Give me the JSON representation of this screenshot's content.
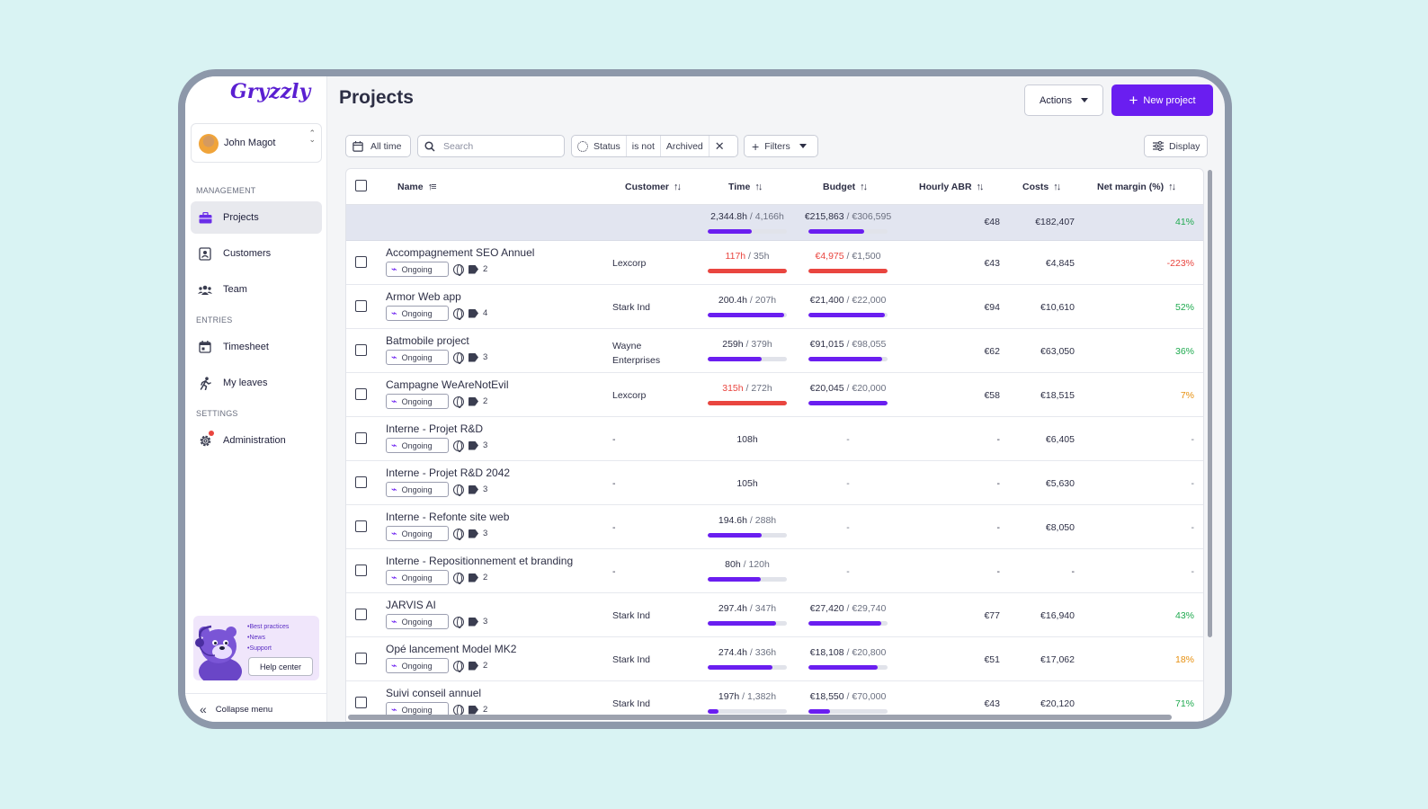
{
  "app": {
    "logo": "Gryzzly",
    "page_title": "Projects"
  },
  "user": {
    "name": "John Magot"
  },
  "sidebar": {
    "sections": {
      "management": "MANAGEMENT",
      "entries": "ENTRIES",
      "settings": "SETTINGS"
    },
    "items": [
      {
        "label": "Projects",
        "icon": "briefcase-icon",
        "active": true
      },
      {
        "label": "Customers",
        "icon": "contact-card-icon"
      },
      {
        "label": "Team",
        "icon": "team-icon"
      },
      {
        "label": "Timesheet",
        "icon": "calendar-icon"
      },
      {
        "label": "My leaves",
        "icon": "runner-icon"
      },
      {
        "label": "Administration",
        "icon": "gear-icon",
        "notification": true
      }
    ],
    "help": {
      "links": [
        "•Best practices",
        "•News",
        "•Support"
      ],
      "button": "Help center"
    },
    "collapse": "Collapse menu"
  },
  "header": {
    "actions": "Actions",
    "new_project": "New project"
  },
  "filters": {
    "time": "All time",
    "search_placeholder": "Search",
    "status": {
      "field": "Status",
      "op": "is not",
      "value": "Archived"
    },
    "filters": "Filters",
    "display": "Display"
  },
  "columns": [
    "Name",
    "Customer",
    "Time",
    "Budget",
    "Hourly ABR",
    "Costs",
    "Net margin (%)"
  ],
  "summary": {
    "time_used": "2,344.8h",
    "time_total": "4,166h",
    "time_pct": 0.56,
    "budget_used": "€215,863",
    "budget_total": "€306,595",
    "budget_pct": 0.7,
    "abr": "€48",
    "costs": "€182,407",
    "margin": "41%",
    "margin_color": "green"
  },
  "colors": {
    "accent": "#6a1ef0",
    "danger": "#e9453f",
    "success": "#1faa4f",
    "warning": "#e7900f"
  },
  "projects": [
    {
      "name": "Accompagnement SEO Annuel",
      "status": "Ongoing",
      "tag_count": "2",
      "customer": "Lexcorp",
      "time_used": "117h",
      "time_total": "35h",
      "time_pct": 1,
      "time_over": true,
      "budget_used": "€4,975",
      "budget_total": "€1,500",
      "budget_pct": 1,
      "budget_over": true,
      "abr": "€43",
      "costs": "€4,845",
      "margin": "-223%",
      "margin_color": "red"
    },
    {
      "name": "Armor Web app",
      "status": "Ongoing",
      "tag_count": "4",
      "customer": "Stark Ind",
      "time_used": "200.4h",
      "time_total": "207h",
      "time_pct": 0.97,
      "budget_used": "€21,400",
      "budget_total": "€22,000",
      "budget_pct": 0.97,
      "abr": "€94",
      "costs": "€10,610",
      "margin": "52%",
      "margin_color": "green"
    },
    {
      "name": "Batmobile project",
      "status": "Ongoing",
      "tag_count": "3",
      "customer": "Wayne",
      "customer2": "Enterprises",
      "time_used": "259h",
      "time_total": "379h",
      "time_pct": 0.68,
      "budget_used": "€91,015",
      "budget_total": "€98,055",
      "budget_pct": 0.93,
      "abr": "€62",
      "costs": "€63,050",
      "margin": "36%",
      "margin_color": "green"
    },
    {
      "name": "Campagne WeAreNotEvil",
      "status": "Ongoing",
      "tag_count": "2",
      "customer": "Lexcorp",
      "time_used": "315h",
      "time_total": "272h",
      "time_pct": 1,
      "time_over": true,
      "time_red_text": true,
      "budget_used": "€20,045",
      "budget_total": "€20,000",
      "budget_pct": 1,
      "abr": "€58",
      "costs": "€18,515",
      "margin": "7%",
      "margin_color": "orange"
    },
    {
      "name": "Interne - Projet R&D",
      "status": "Ongoing",
      "tag_count": "3",
      "customer": "-",
      "time_single": "108h",
      "budget_dash": "-",
      "abr": "-",
      "costs": "€6,405",
      "margin": "-",
      "margin_color": "muted"
    },
    {
      "name": "Interne - Projet R&D 2042",
      "status": "Ongoing",
      "tag_count": "3",
      "customer": "-",
      "time_single": "105h",
      "budget_dash": "-",
      "abr": "-",
      "costs": "€5,630",
      "margin": "-",
      "margin_color": "muted"
    },
    {
      "name": "Interne - Refonte site web",
      "status": "Ongoing",
      "tag_count": "3",
      "customer": "-",
      "time_used": "194.6h",
      "time_total": "288h",
      "time_pct": 0.68,
      "budget_dash": "-",
      "abr": "-",
      "costs": "€8,050",
      "margin": "-",
      "margin_color": "muted"
    },
    {
      "name": "Interne - Repositionnement et branding",
      "status": "Ongoing",
      "tag_count": "2",
      "customer": "-",
      "time_used": "80h",
      "time_total": "120h",
      "time_pct": 0.67,
      "budget_dash": "-",
      "abr": "-",
      "costs": "-",
      "margin": "-",
      "margin_color": "muted"
    },
    {
      "name": "JARVIS AI",
      "status": "Ongoing",
      "tag_count": "3",
      "customer": "Stark Ind",
      "time_used": "297.4h",
      "time_total": "347h",
      "time_pct": 0.86,
      "budget_used": "€27,420",
      "budget_total": "€29,740",
      "budget_pct": 0.92,
      "abr": "€77",
      "costs": "€16,940",
      "margin": "43%",
      "margin_color": "green"
    },
    {
      "name": "Opé lancement Model MK2",
      "status": "Ongoing",
      "tag_count": "2",
      "customer": "Stark Ind",
      "time_used": "274.4h",
      "time_total": "336h",
      "time_pct": 0.82,
      "budget_used": "€18,108",
      "budget_total": "€20,800",
      "budget_pct": 0.87,
      "abr": "€51",
      "costs": "€17,062",
      "margin": "18%",
      "margin_color": "orange"
    },
    {
      "name": "Suivi conseil annuel",
      "status": "Ongoing",
      "tag_count": "2",
      "customer": "Stark Ind",
      "time_used": "197h",
      "time_total": "1,382h",
      "time_pct": 0.14,
      "budget_used": "€18,550",
      "budget_total": "€70,000",
      "budget_pct": 0.27,
      "abr": "€43",
      "costs": "€20,120",
      "margin": "71%",
      "margin_color": "green"
    }
  ]
}
